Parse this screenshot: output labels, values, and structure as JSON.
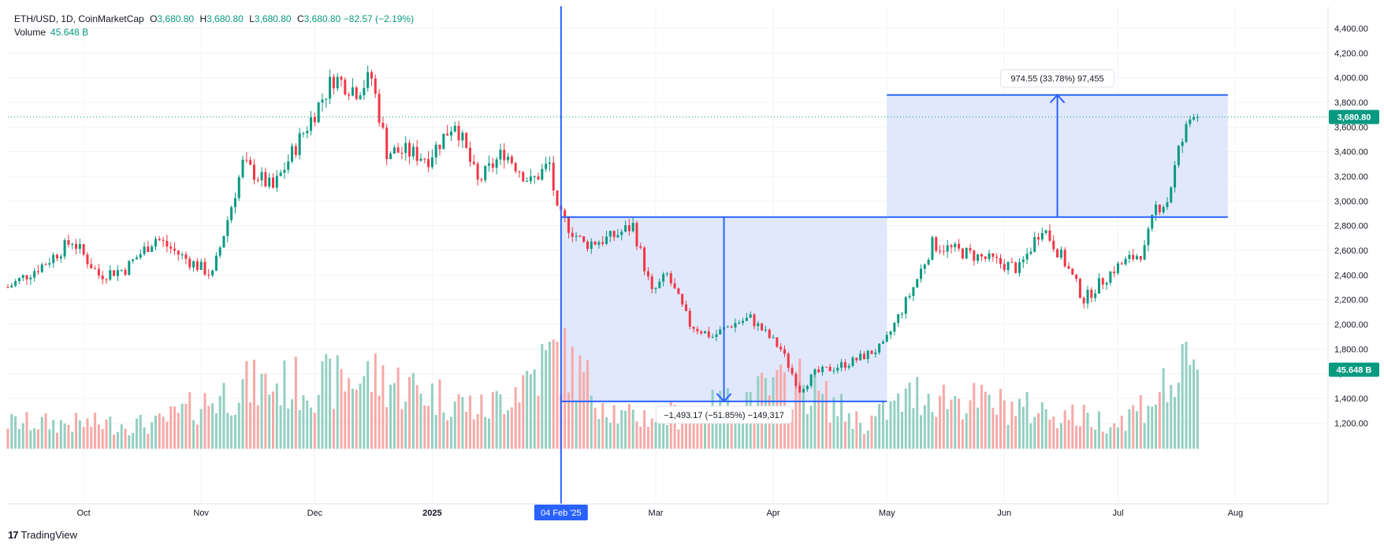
{
  "header": {
    "symbol": "ETH/USD, 1D, CoinMarketCap",
    "open_label": "O",
    "open": "3,680.80",
    "high_label": "H",
    "high": "3,680.80",
    "low_label": "L",
    "low": "3,680.80",
    "close_label": "C",
    "close": "3,680.80",
    "change": "−82.57 (−2.19%)",
    "volume_label": "Volume",
    "volume": "45.648 B"
  },
  "brand": {
    "logo": "17",
    "name": "TradingView"
  },
  "colors": {
    "up": "#089981",
    "down": "#f23645",
    "vol_up": "#93cfc2",
    "vol_down": "#f7a9a7",
    "tool": "#2962ff",
    "tool_fill": "#dce4fc",
    "accent": "#2962ff"
  },
  "chart_data": {
    "type": "candlestick",
    "symbol": "ETH/USD",
    "interval": "1D",
    "source": "CoinMarketCap",
    "ylim": [
      1000,
      4600
    ],
    "y_ticks": [
      "4,400.00",
      "4,200.00",
      "4,000.00",
      "3,800.00",
      "3,600.00",
      "3,400.00",
      "3,200.00",
      "3,000.00",
      "2,800.00",
      "2,600.00",
      "2,400.00",
      "2,200.00",
      "2,000.00",
      "1,800.00",
      "1,600.00",
      "1,400.00",
      "1,200.00"
    ],
    "y_tick_values": [
      4400,
      4200,
      4000,
      3800,
      3600,
      3400,
      3200,
      3000,
      2800,
      2600,
      2400,
      2200,
      2000,
      1800,
      1600,
      1400,
      1200
    ],
    "x_range": [
      "2024-09-11",
      "2025-08-14"
    ],
    "x_ticks": [
      {
        "date": "2024-10-01",
        "label": "Oct"
      },
      {
        "date": "2024-11-01",
        "label": "Nov"
      },
      {
        "date": "2024-12-01",
        "label": "Dec"
      },
      {
        "date": "2025-01-01",
        "label": "2025"
      },
      {
        "date": "2025-03-01",
        "label": "Mar"
      },
      {
        "date": "2025-04-01",
        "label": "Apr"
      },
      {
        "date": "2025-05-01",
        "label": "May"
      },
      {
        "date": "2025-06-01",
        "label": "Jun"
      },
      {
        "date": "2025-07-01",
        "label": "Jul"
      },
      {
        "date": "2025-08-01",
        "label": "Aug"
      }
    ],
    "crosshair": {
      "date": "2025-02-04",
      "label": "04 Feb '25"
    },
    "last_price": {
      "value": 3680.8,
      "label": "3,680.80"
    },
    "last_volume": {
      "value": 45.648,
      "label": "45.648 B"
    },
    "close_path": [
      {
        "date": "2024-09-11",
        "close": 2300
      },
      {
        "date": "2024-09-21",
        "close": 2500
      },
      {
        "date": "2024-09-28",
        "close": 2680
      },
      {
        "date": "2024-10-05",
        "close": 2400
      },
      {
        "date": "2024-10-12",
        "close": 2450
      },
      {
        "date": "2024-10-20",
        "close": 2700
      },
      {
        "date": "2024-10-27",
        "close": 2550
      },
      {
        "date": "2024-11-04",
        "close": 2400
      },
      {
        "date": "2024-11-12",
        "close": 3300
      },
      {
        "date": "2024-11-20",
        "close": 3100
      },
      {
        "date": "2024-11-27",
        "close": 3500
      },
      {
        "date": "2024-12-06",
        "close": 4000
      },
      {
        "date": "2024-12-12",
        "close": 3900
      },
      {
        "date": "2024-12-16",
        "close": 4000
      },
      {
        "date": "2024-12-20",
        "close": 3400
      },
      {
        "date": "2024-12-25",
        "close": 3400
      },
      {
        "date": "2024-12-31",
        "close": 3350
      },
      {
        "date": "2025-01-07",
        "close": 3650
      },
      {
        "date": "2025-01-13",
        "close": 3150
      },
      {
        "date": "2025-01-20",
        "close": 3400
      },
      {
        "date": "2025-01-27",
        "close": 3150
      },
      {
        "date": "2025-02-01",
        "close": 3300
      },
      {
        "date": "2025-02-03",
        "close": 2900
      },
      {
        "date": "2025-02-10",
        "close": 2650
      },
      {
        "date": "2025-02-17",
        "close": 2700
      },
      {
        "date": "2025-02-23",
        "close": 2800
      },
      {
        "date": "2025-02-28",
        "close": 2250
      },
      {
        "date": "2025-03-04",
        "close": 2400
      },
      {
        "date": "2025-03-10",
        "close": 2000
      },
      {
        "date": "2025-03-16",
        "close": 1900
      },
      {
        "date": "2025-03-21",
        "close": 2000
      },
      {
        "date": "2025-03-26",
        "close": 2050
      },
      {
        "date": "2025-04-03",
        "close": 1800
      },
      {
        "date": "2025-04-08",
        "close": 1470
      },
      {
        "date": "2025-04-12",
        "close": 1600
      },
      {
        "date": "2025-04-22",
        "close": 1700
      },
      {
        "date": "2025-04-30",
        "close": 1820
      },
      {
        "date": "2025-05-08",
        "close": 2300
      },
      {
        "date": "2025-05-13",
        "close": 2650
      },
      {
        "date": "2025-05-25",
        "close": 2550
      },
      {
        "date": "2025-06-05",
        "close": 2450
      },
      {
        "date": "2025-06-11",
        "close": 2800
      },
      {
        "date": "2025-06-17",
        "close": 2500
      },
      {
        "date": "2025-06-22",
        "close": 2200
      },
      {
        "date": "2025-06-30",
        "close": 2450
      },
      {
        "date": "2025-07-08",
        "close": 2600
      },
      {
        "date": "2025-07-11",
        "close": 2950
      },
      {
        "date": "2025-07-14",
        "close": 3000
      },
      {
        "date": "2025-07-17",
        "close": 3400
      },
      {
        "date": "2025-07-21",
        "close": 3750
      },
      {
        "date": "2025-07-22",
        "close": 3680.8
      }
    ],
    "volume_path": [
      {
        "date": "2024-09-11",
        "vol": 15
      },
      {
        "date": "2024-10-20",
        "vol": 14
      },
      {
        "date": "2024-11-12",
        "vol": 36
      },
      {
        "date": "2024-12-06",
        "vol": 38
      },
      {
        "date": "2024-12-16",
        "vol": 42
      },
      {
        "date": "2025-01-15",
        "vol": 22
      },
      {
        "date": "2025-02-03",
        "vol": 55
      },
      {
        "date": "2025-02-20",
        "vol": 18
      },
      {
        "date": "2025-03-10",
        "vol": 20
      },
      {
        "date": "2025-04-08",
        "vol": 38
      },
      {
        "date": "2025-04-25",
        "vol": 14
      },
      {
        "date": "2025-05-09",
        "vol": 32
      },
      {
        "date": "2025-06-10",
        "vol": 22
      },
      {
        "date": "2025-07-01",
        "vol": 15
      },
      {
        "date": "2025-07-18",
        "vol": 42
      },
      {
        "date": "2025-07-22",
        "vol": 45.648
      }
    ],
    "drawings": [
      {
        "type": "price_range",
        "from_date": "2025-02-04",
        "to_date": "2025-05-01",
        "top_price": 2870,
        "bottom_price": 1375,
        "direction": "down",
        "label": "−1,493.17 (−51.85%) −149,317"
      },
      {
        "type": "price_range",
        "from_date": "2025-05-01",
        "to_date": "2025-07-30",
        "top_price": 3860,
        "bottom_price": 2870,
        "direction": "up",
        "label": "974.55 (33.78%) 97,455"
      }
    ]
  }
}
